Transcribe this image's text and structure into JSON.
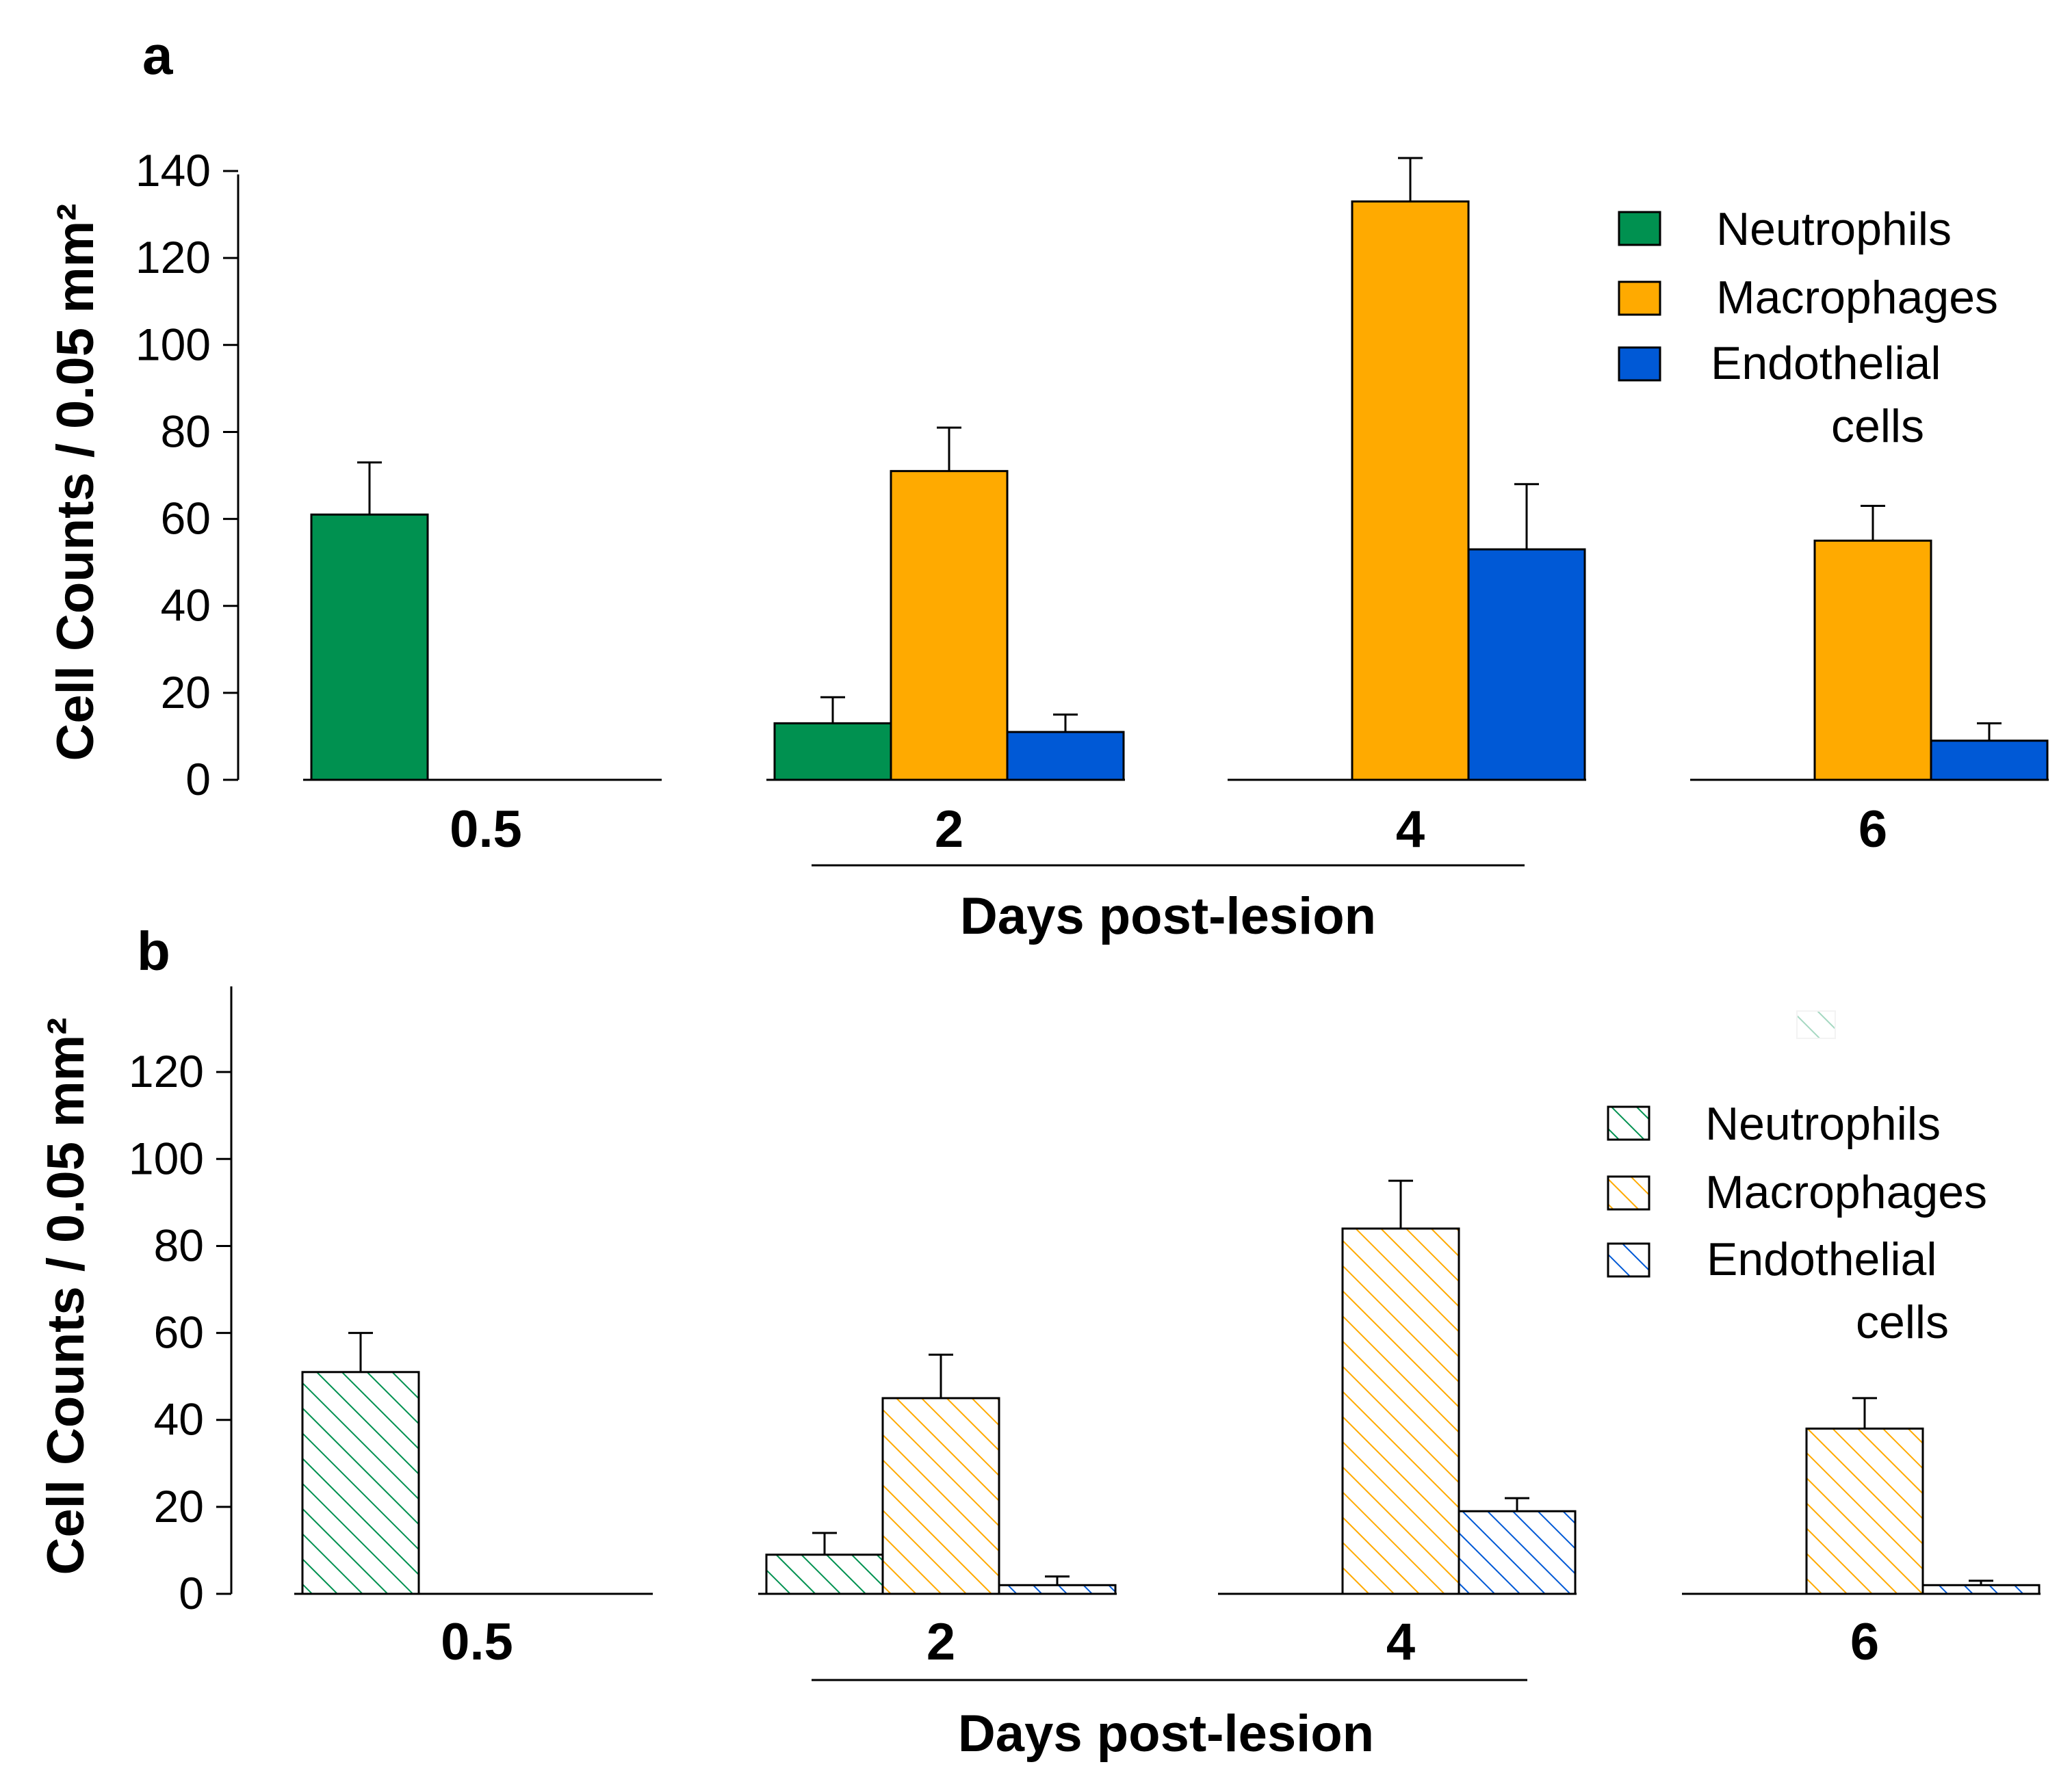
{
  "chart_data": [
    {
      "panel": "a",
      "type": "bar",
      "style": "solid",
      "ylabel": "Cell Counts / 0.05 mm²",
      "xlabel": "Days post-lesion",
      "ylim": [
        0,
        140
      ],
      "yticks": [
        "0",
        "20",
        "40",
        "60",
        "80",
        "100",
        "120",
        "140"
      ],
      "categories": [
        "0.5",
        "2",
        "4",
        "6"
      ],
      "series": [
        {
          "name": "Neutrophils",
          "color": "#009150",
          "values": [
            61,
            13,
            0,
            0
          ],
          "errors": [
            12,
            6,
            0,
            0
          ]
        },
        {
          "name": "Macrophages",
          "color": "#FFAA00",
          "values": [
            0,
            71,
            133,
            55
          ],
          "errors": [
            0,
            10,
            10,
            8
          ]
        },
        {
          "name": "Endothelial cells",
          "color": "#0059D6",
          "values": [
            0,
            11,
            53,
            9
          ],
          "errors": [
            0,
            4,
            15,
            4
          ]
        }
      ],
      "legend": {
        "placement": "top-right",
        "labels": [
          "Neutrophils",
          "Macrophages",
          "Endothelial",
          "cells"
        ]
      }
    },
    {
      "panel": "b",
      "type": "bar",
      "style": "hatched",
      "ylabel": "Cell Counts / 0.05 mm²",
      "xlabel": "Days post-lesion",
      "ylim": [
        0,
        140
      ],
      "yticks": [
        "0",
        "20",
        "40",
        "60",
        "80",
        "100",
        "120"
      ],
      "categories": [
        "0.5",
        "2",
        "4",
        "6"
      ],
      "series": [
        {
          "name": "Neutrophils",
          "color": "#009150",
          "values": [
            51,
            9,
            0,
            0
          ],
          "errors": [
            9,
            5,
            0,
            0
          ]
        },
        {
          "name": "Macrophages",
          "color": "#FFAA00",
          "values": [
            0,
            45,
            84,
            38
          ],
          "errors": [
            0,
            10,
            11,
            7
          ]
        },
        {
          "name": "Endothelial cells",
          "color": "#0059D6",
          "values": [
            0,
            2,
            19,
            2
          ],
          "errors": [
            0,
            2,
            3,
            1
          ]
        }
      ],
      "legend": {
        "placement": "right",
        "labels": [
          "Neutrophils",
          "Macrophages",
          "Endothelial",
          "cells"
        ]
      }
    }
  ]
}
